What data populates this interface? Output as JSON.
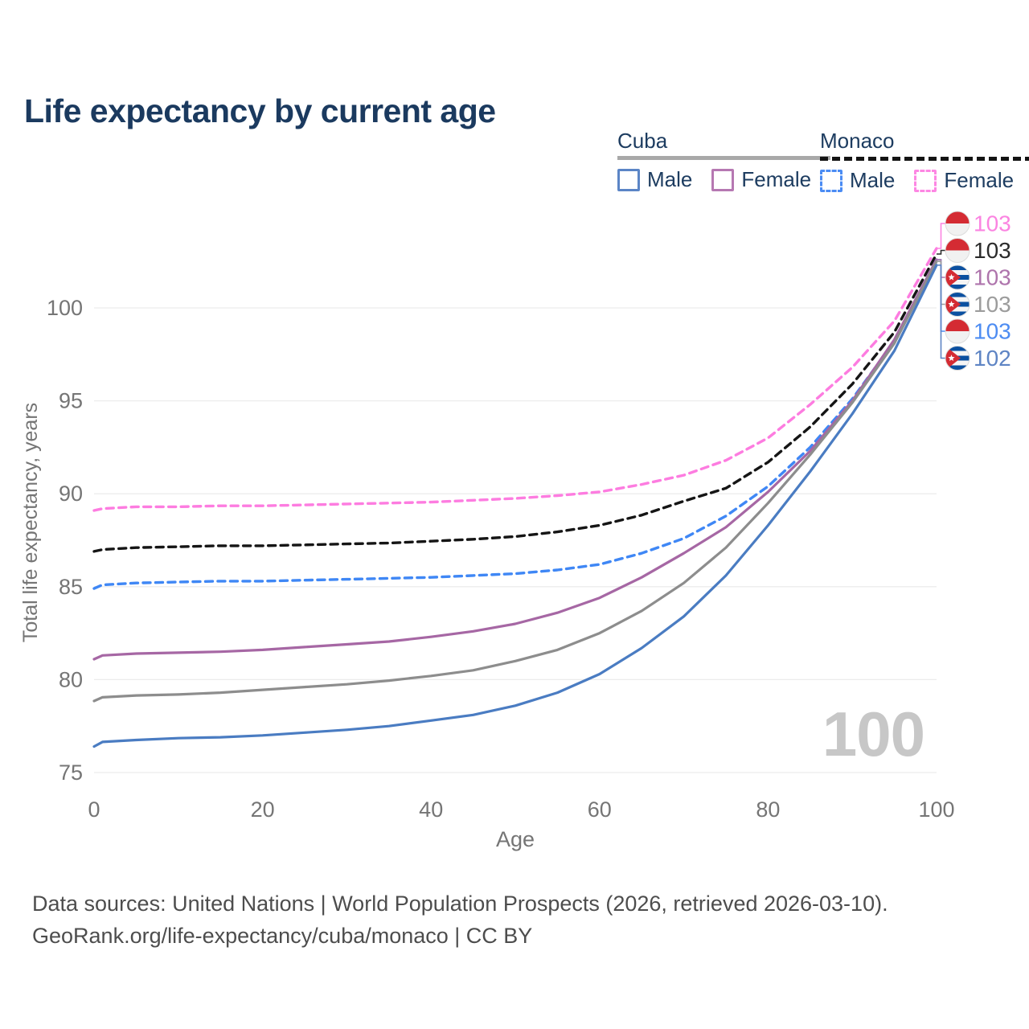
{
  "title": "Life expectancy by current age",
  "legend": {
    "cuba": {
      "label": "Cuba",
      "male_label": "Male",
      "female_label": "Female"
    },
    "monaco": {
      "label": "Monaco",
      "male_label": "Male",
      "female_label": "Female"
    }
  },
  "chart_data": {
    "type": "line",
    "xlabel": "Age",
    "ylabel": "Total life expectancy, years",
    "xlim": [
      0,
      100
    ],
    "ylim": [
      75,
      100
    ],
    "x_ticks": [
      0,
      20,
      40,
      60,
      80,
      100
    ],
    "y_ticks": [
      75,
      80,
      85,
      90,
      95,
      100
    ],
    "grid": "horizontal",
    "age_indicator": "100",
    "ages": [
      0,
      1,
      5,
      10,
      15,
      20,
      25,
      30,
      35,
      40,
      45,
      50,
      55,
      60,
      65,
      70,
      75,
      80,
      85,
      90,
      95,
      100
    ],
    "series": [
      {
        "id": "monaco_female",
        "name": "Monaco Female",
        "country": "Monaco",
        "sex": "Female",
        "flag": "monaco",
        "dash": true,
        "row": 0,
        "color": "#fd7ce0",
        "label_color": "#fb84e1",
        "end_label": "103",
        "values": [
          89.1,
          89.2,
          89.3,
          89.3,
          89.35,
          89.35,
          89.4,
          89.45,
          89.5,
          89.55,
          89.65,
          89.75,
          89.9,
          90.1,
          90.5,
          91.0,
          91.8,
          93.0,
          94.8,
          96.8,
          99.3,
          103.2
        ]
      },
      {
        "id": "monaco_total",
        "name": "Monaco Both sexes",
        "country": "Monaco",
        "sex": "Both",
        "flag": "monaco",
        "dash": true,
        "row": 1,
        "color": "#151515",
        "label_color": "#2b2b2b",
        "end_label": "103",
        "values": [
          86.9,
          87.0,
          87.1,
          87.15,
          87.2,
          87.2,
          87.25,
          87.3,
          87.35,
          87.45,
          87.55,
          87.7,
          87.95,
          88.3,
          88.85,
          89.6,
          90.3,
          91.7,
          93.6,
          95.9,
          98.7,
          102.9
        ]
      },
      {
        "id": "monaco_male",
        "name": "Monaco Male",
        "country": "Monaco",
        "sex": "Male",
        "flag": "monaco",
        "dash": true,
        "row": 4,
        "color": "#3f87f5",
        "label_color": "#4d8cf2",
        "end_label": "103",
        "values": [
          84.9,
          85.1,
          85.2,
          85.25,
          85.3,
          85.3,
          85.35,
          85.4,
          85.45,
          85.5,
          85.6,
          85.7,
          85.9,
          86.2,
          86.8,
          87.6,
          88.8,
          90.4,
          92.5,
          95.1,
          98.2,
          102.6
        ]
      },
      {
        "id": "cuba_female",
        "name": "Cuba Female",
        "country": "Cuba",
        "sex": "Female",
        "flag": "cuba",
        "dash": false,
        "row": 2,
        "color": "#a667a4",
        "label_color": "#ae74ac",
        "end_label": "103",
        "values": [
          81.1,
          81.3,
          81.4,
          81.45,
          81.5,
          81.6,
          81.75,
          81.9,
          82.05,
          82.3,
          82.6,
          83.0,
          83.6,
          84.4,
          85.5,
          86.8,
          88.2,
          90.1,
          92.3,
          95.0,
          98.3,
          102.6
        ]
      },
      {
        "id": "cuba_total",
        "name": "Cuba Both sexes",
        "country": "Cuba",
        "sex": "Both",
        "flag": "cuba",
        "dash": false,
        "row": 3,
        "color": "#8d8d8d",
        "label_color": "#9c9c9c",
        "end_label": "103",
        "values": [
          78.85,
          79.05,
          79.15,
          79.2,
          79.3,
          79.45,
          79.6,
          79.75,
          79.95,
          80.2,
          80.5,
          81.0,
          81.6,
          82.5,
          83.7,
          85.2,
          87.1,
          89.5,
          92.1,
          94.9,
          98.1,
          102.5
        ]
      },
      {
        "id": "cuba_male",
        "name": "Cuba Male",
        "country": "Cuba",
        "sex": "Male",
        "flag": "cuba",
        "dash": false,
        "row": 5,
        "color": "#4a7cc2",
        "label_color": "#5e84c4",
        "end_label": "102",
        "values": [
          76.4,
          76.65,
          76.75,
          76.85,
          76.9,
          77.0,
          77.15,
          77.3,
          77.5,
          77.8,
          78.1,
          78.6,
          79.3,
          80.3,
          81.7,
          83.4,
          85.6,
          88.3,
          91.2,
          94.3,
          97.7,
          102.3
        ]
      }
    ]
  },
  "footer": {
    "line1": "Data sources: United Nations | World Population Prospects (2026, retrieved 2026-03-10).",
    "line2": "GeoRank.org/life-expectancy/cuba/monaco | CC BY"
  }
}
